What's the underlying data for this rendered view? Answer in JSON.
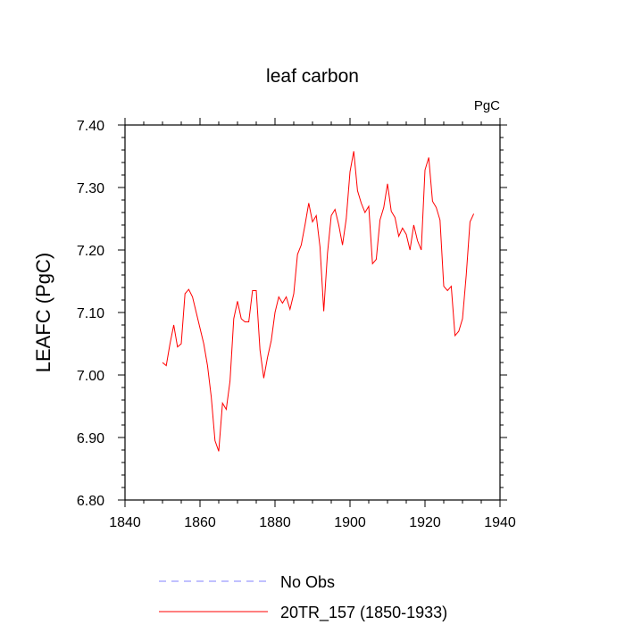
{
  "chart_data": {
    "type": "line",
    "title": "leaf carbon",
    "units": "PgC",
    "xlabel": "",
    "ylabel": "LEAFC  (PgC)",
    "xlim": [
      1840,
      1940
    ],
    "ylim": [
      6.8,
      7.4
    ],
    "x_ticks": [
      1840,
      1860,
      1880,
      1900,
      1920,
      1940
    ],
    "y_ticks": [
      6.8,
      6.9,
      7.0,
      7.1,
      7.2,
      7.3,
      7.4
    ],
    "x_tick_labels": [
      "1840",
      "1860",
      "1880",
      "1900",
      "1920",
      "1940"
    ],
    "y_tick_labels": [
      "6.80",
      "6.90",
      "7.00",
      "7.10",
      "7.20",
      "7.30",
      "7.40"
    ],
    "series": [
      {
        "name": "20TR_157 (1850-1933)",
        "color": "#ff0000",
        "style": "solid",
        "x": [
          1850,
          1851,
          1852,
          1853,
          1854,
          1855,
          1856,
          1857,
          1858,
          1859,
          1860,
          1861,
          1862,
          1863,
          1864,
          1865,
          1866,
          1867,
          1868,
          1869,
          1870,
          1871,
          1872,
          1873,
          1874,
          1875,
          1876,
          1877,
          1878,
          1879,
          1880,
          1881,
          1882,
          1883,
          1884,
          1885,
          1886,
          1887,
          1888,
          1889,
          1890,
          1891,
          1892,
          1893,
          1894,
          1895,
          1896,
          1897,
          1898,
          1899,
          1900,
          1901,
          1902,
          1903,
          1904,
          1905,
          1906,
          1907,
          1908,
          1909,
          1910,
          1911,
          1912,
          1913,
          1914,
          1915,
          1916,
          1917,
          1918,
          1919,
          1920,
          1921,
          1922,
          1923,
          1924,
          1925,
          1926,
          1927,
          1928,
          1929,
          1930,
          1931,
          1932,
          1933
        ],
        "values": [
          7.02,
          7.015,
          7.05,
          7.08,
          7.045,
          7.05,
          7.13,
          7.137,
          7.125,
          7.1,
          7.075,
          7.05,
          7.015,
          6.965,
          6.895,
          6.878,
          6.955,
          6.945,
          6.99,
          7.09,
          7.118,
          7.09,
          7.085,
          7.085,
          7.135,
          7.135,
          7.04,
          6.995,
          7.028,
          7.055,
          7.1,
          7.125,
          7.115,
          7.125,
          7.105,
          7.13,
          7.193,
          7.208,
          7.24,
          7.275,
          7.245,
          7.255,
          7.205,
          7.102,
          7.195,
          7.255,
          7.265,
          7.24,
          7.208,
          7.25,
          7.325,
          7.358,
          7.295,
          7.275,
          7.26,
          7.27,
          7.178,
          7.185,
          7.248,
          7.268,
          7.306,
          7.262,
          7.252,
          7.222,
          7.235,
          7.225,
          7.2,
          7.24,
          7.215,
          7.2,
          7.328,
          7.348,
          7.278,
          7.268,
          7.248,
          7.142,
          7.135,
          7.142,
          7.063,
          7.07,
          7.09,
          7.16,
          7.245,
          7.258
        ]
      },
      {
        "name": "No Obs",
        "color": "#8080ff",
        "style": "dashed",
        "x": [],
        "values": []
      }
    ],
    "legend_position": "bottom-center"
  }
}
